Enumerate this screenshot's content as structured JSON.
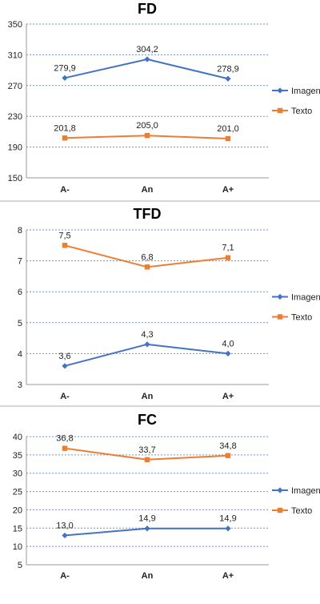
{
  "chart_data": [
    {
      "type": "line",
      "title": "FD",
      "categories": [
        "A-",
        "An",
        "A+"
      ],
      "ylim": [
        150,
        350
      ],
      "yticks": [
        150,
        190,
        230,
        270,
        310,
        350
      ],
      "tick_labels": [
        "150",
        "190",
        "230",
        "270",
        "310",
        "350"
      ],
      "series": [
        {
          "name": "Imagen",
          "values": [
            279.9,
            304.2,
            278.9
          ],
          "labels": [
            "279,9",
            "304,2",
            "278,9"
          ],
          "color": "#4472c4",
          "marker": "diamond"
        },
        {
          "name": "Texto",
          "values": [
            201.8,
            205.0,
            201.0
          ],
          "labels": [
            "201,8",
            "205,0",
            "201,0"
          ],
          "color": "#ed7d31",
          "marker": "square"
        }
      ],
      "grid": true,
      "legend": "right"
    },
    {
      "type": "line",
      "title": "TFD",
      "categories": [
        "A-",
        "An",
        "A+"
      ],
      "ylim": [
        3,
        8
      ],
      "yticks": [
        3,
        4,
        5,
        6,
        7,
        8
      ],
      "tick_labels": [
        "3",
        "4",
        "5",
        "6",
        "7",
        "8"
      ],
      "series": [
        {
          "name": "Imagen",
          "values": [
            3.6,
            4.3,
            4.0
          ],
          "labels": [
            "3,6",
            "4,3",
            "4,0"
          ],
          "color": "#4472c4",
          "marker": "diamond"
        },
        {
          "name": "Texto",
          "values": [
            7.5,
            6.8,
            7.1
          ],
          "labels": [
            "7,5",
            "6,8",
            "7,1"
          ],
          "color": "#ed7d31",
          "marker": "square"
        }
      ],
      "grid": true,
      "legend": "right"
    },
    {
      "type": "line",
      "title": "FC",
      "categories": [
        "A-",
        "An",
        "A+"
      ],
      "ylim": [
        5,
        40
      ],
      "yticks": [
        5,
        10,
        15,
        20,
        25,
        30,
        35,
        40
      ],
      "tick_labels": [
        "5",
        "10",
        "15",
        "20",
        "25",
        "30",
        "35",
        "40"
      ],
      "series": [
        {
          "name": "Imagen",
          "values": [
            13.0,
            14.9,
            14.9
          ],
          "labels": [
            "13,0",
            "14,9",
            "14,9"
          ],
          "color": "#4472c4",
          "marker": "diamond"
        },
        {
          "name": "Texto",
          "values": [
            36.8,
            33.7,
            34.8
          ],
          "labels": [
            "36,8",
            "33,7",
            "34,8"
          ],
          "color": "#ed7d31",
          "marker": "square"
        }
      ],
      "grid": true,
      "legend": "right"
    }
  ]
}
